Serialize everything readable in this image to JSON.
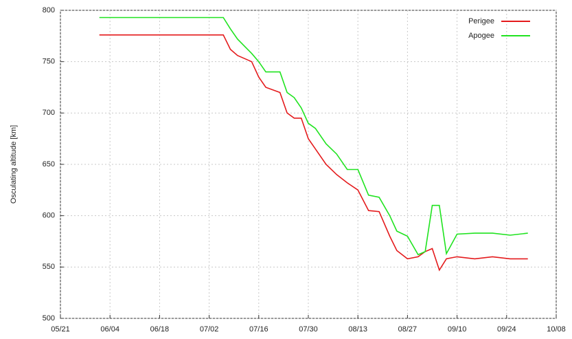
{
  "chart_data": {
    "type": "line",
    "y_label": "Osculating altitude [km]",
    "x": [
      "06/01",
      "07/06",
      "07/08",
      "07/10",
      "07/12",
      "07/14",
      "07/16",
      "07/18",
      "07/22",
      "07/24",
      "07/26",
      "07/28",
      "07/30",
      "08/01",
      "08/04",
      "08/07",
      "08/10",
      "08/13",
      "08/16",
      "08/19",
      "08/22",
      "08/24",
      "08/27",
      "08/30",
      "09/01",
      "09/03",
      "09/05",
      "09/07",
      "09/10",
      "09/15",
      "09/20",
      "09/25",
      "09/30"
    ],
    "series": [
      {
        "name": "Perigee",
        "color": "#e41a1c",
        "values": [
          776,
          776,
          762,
          756,
          753,
          750,
          735,
          725,
          720,
          700,
          695,
          695,
          675,
          665,
          650,
          640,
          632,
          625,
          605,
          604,
          580,
          566,
          558,
          560,
          565,
          568,
          547,
          558,
          560,
          558,
          560,
          558,
          558
        ]
      },
      {
        "name": "Apogee",
        "color": "#1fe31f",
        "values": [
          793,
          793,
          782,
          772,
          765,
          758,
          750,
          740,
          740,
          720,
          715,
          705,
          690,
          685,
          670,
          660,
          645,
          645,
          620,
          618,
          600,
          585,
          580,
          562,
          565,
          610,
          610,
          563,
          582,
          583,
          583,
          581,
          583
        ]
      }
    ],
    "xlim": [
      "05/21",
      "10/08"
    ],
    "xticks": [
      "05/21",
      "06/04",
      "06/18",
      "07/02",
      "07/16",
      "07/30",
      "08/13",
      "08/27",
      "09/10",
      "09/24",
      "10/08"
    ],
    "ylim": [
      500,
      800
    ],
    "yticks": [
      500,
      550,
      600,
      650,
      700,
      750,
      800
    ],
    "grid": true,
    "legend": "upper right"
  }
}
